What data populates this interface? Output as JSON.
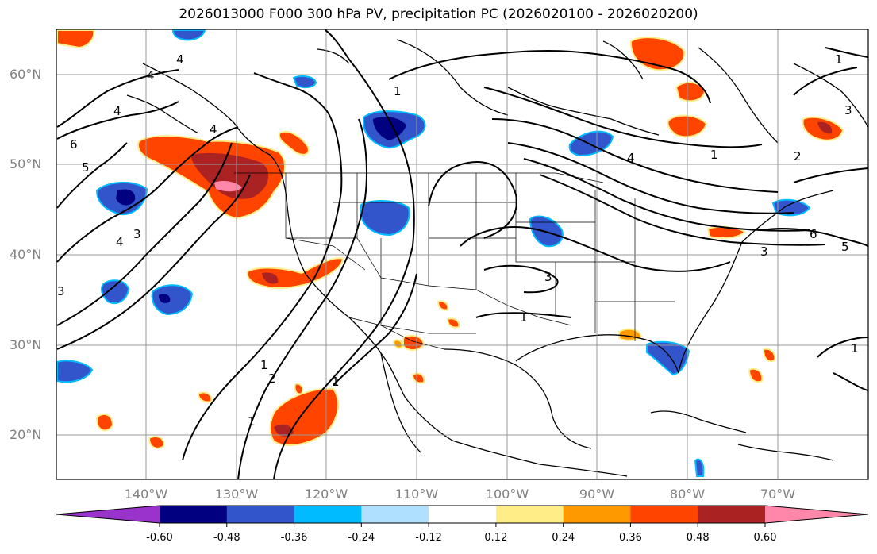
{
  "title": "2026013000 F000 300 hPa PV, precipitation PC (2026020100 - 2026020200)",
  "lat_labels": [
    "60°N",
    "50°N",
    "40°N",
    "30°N",
    "20°N"
  ],
  "lon_labels": [
    "140°W",
    "130°W",
    "120°W",
    "110°W",
    "100°W",
    "90°W",
    "80°W",
    "70°W"
  ],
  "contour_labels": [
    "4",
    "4",
    "4",
    "4",
    "5",
    "6",
    "3",
    "4",
    "3",
    "1",
    "2",
    "1",
    "1",
    "1",
    "1",
    "4",
    "1",
    "2",
    "3",
    "6",
    "5",
    "3",
    "3",
    "1",
    "1"
  ],
  "colorbar": {
    "ticks": [
      "-0.60",
      "-0.48",
      "-0.36",
      "-0.24",
      "-0.12",
      "0.12",
      "0.24",
      "0.36",
      "0.48",
      "0.60"
    ],
    "colors": [
      "#9933cc",
      "#000080",
      "#3355cc",
      "#00bbff",
      "#b0e0ff",
      "#ffffff",
      "#ffee88",
      "#ff9900",
      "#ff4400",
      "#aa2222",
      "#ff88aa"
    ]
  },
  "colors": {
    "neg_strong": "#000080",
    "neg_mid": "#3355cc",
    "neg_light": "#00bbff",
    "pos_light": "#ffee88",
    "pos_mid": "#ff9900",
    "pos_strong": "#ff4400",
    "pos_dark": "#aa2222",
    "pos_max": "#ff88aa"
  }
}
